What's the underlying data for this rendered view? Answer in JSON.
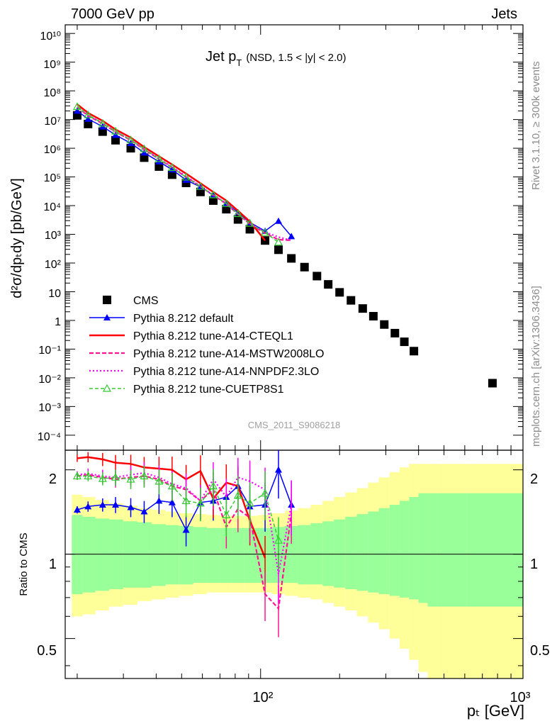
{
  "header": {
    "left": "7000 GeV pp",
    "right": "Jets",
    "title": "Jet p",
    "title_sub": "T",
    "title_cond": "(NSD, 1.5 < |y| < 2.0)"
  },
  "side_labels": {
    "top": "Rivet 3.1.10, ≥ 300k events",
    "bottom": "mcplots.cern.ch [arXiv:1306.3436]"
  },
  "watermark": "CMS_2011_S9086218",
  "axes": {
    "ylabel_main": "d²σ/dpₜdy [pb/GeV]",
    "ylabel_ratio": "Ratio to CMS",
    "xlabel": "pₜ [GeV]",
    "x_ticks": [
      "10²",
      "10³"
    ],
    "y_ticks_main": [
      "10⁴",
      "10³",
      "10²",
      "10",
      "1",
      "10⁻¹",
      "10⁻²",
      "10⁻³",
      "10⁻⁴"
    ],
    "y_ticks_main_sup": [
      "10¹⁰",
      "10⁹",
      "10⁸",
      "10⁷",
      "10⁶",
      "10⁵"
    ],
    "y_ticks_ratio": [
      "2",
      "1",
      "0.5"
    ]
  },
  "colors": {
    "cms": "#000000",
    "default": "#0000ff",
    "cteql1": "#ff0000",
    "mstw": "#ff1493",
    "nnpdf": "#ff00ff",
    "cuetp8s1": "#33cc33",
    "band_inner": "#99ff99",
    "band_outer": "#ffff99"
  },
  "chart_data": {
    "type": "scatter",
    "x_scale": "log",
    "y_scale": "log",
    "xlim": [
      18,
      1000
    ],
    "ylim": [
      3e-05,
      20000000000
    ],
    "ratio_ylim": [
      0.36,
      2.35
    ],
    "legend_position": "middle-left",
    "x": [
      20,
      22,
      25,
      28,
      32,
      36,
      41,
      46,
      52,
      59,
      66,
      74,
      82,
      91,
      104,
      117,
      131,
      147,
      164,
      181,
      200,
      221,
      245,
      269,
      296,
      325,
      353,
      384,
      416,
      451,
      487,
      765
    ],
    "series": [
      {
        "name": "CMS",
        "marker": "square",
        "values": [
          14000000,
          7000000,
          3800000,
          1900000,
          1000000,
          470000,
          230000,
          120000,
          62000,
          30000,
          15000,
          7500,
          3300,
          1500,
          610,
          290,
          145,
          72,
          35,
          18,
          9.5,
          5,
          2.6,
          1.4,
          0.72,
          0.36,
          0.18,
          0.085,
          null,
          null,
          null,
          0.0065
        ],
        "ratio_band_inner": [
          [
            0.72,
            1.38
          ],
          [
            0.73,
            1.36
          ],
          [
            0.74,
            1.34
          ],
          [
            0.75,
            1.33
          ],
          [
            0.76,
            1.31
          ],
          [
            0.76,
            1.3
          ],
          [
            0.77,
            1.28
          ],
          [
            0.78,
            1.27
          ],
          [
            0.78,
            1.26
          ],
          [
            0.79,
            1.25
          ],
          [
            0.79,
            1.24
          ],
          [
            0.79,
            1.24
          ],
          [
            0.79,
            1.24
          ],
          [
            0.79,
            1.24
          ],
          [
            0.79,
            1.24
          ],
          [
            0.79,
            1.25
          ],
          [
            0.79,
            1.26
          ],
          [
            0.78,
            1.27
          ],
          [
            0.78,
            1.29
          ],
          [
            0.77,
            1.31
          ],
          [
            0.76,
            1.33
          ],
          [
            0.75,
            1.36
          ],
          [
            0.74,
            1.39
          ],
          [
            0.73,
            1.42
          ],
          [
            0.72,
            1.46
          ],
          [
            0.71,
            1.5
          ],
          [
            0.7,
            1.55
          ],
          [
            0.69,
            1.6
          ],
          [
            0.67,
            1.65
          ],
          [
            0.65,
            1.65
          ],
          [
            0.65,
            1.65
          ],
          [
            0.65,
            1.65
          ]
        ],
        "ratio_band_outer": [
          [
            0.6,
            1.63
          ],
          [
            0.61,
            1.6
          ],
          [
            0.63,
            1.56
          ],
          [
            0.65,
            1.52
          ],
          [
            0.66,
            1.49
          ],
          [
            0.68,
            1.46
          ],
          [
            0.69,
            1.44
          ],
          [
            0.7,
            1.42
          ],
          [
            0.71,
            1.4
          ],
          [
            0.72,
            1.39
          ],
          [
            0.73,
            1.38
          ],
          [
            0.73,
            1.37
          ],
          [
            0.73,
            1.37
          ],
          [
            0.73,
            1.37
          ],
          [
            0.73,
            1.38
          ],
          [
            0.72,
            1.4
          ],
          [
            0.71,
            1.43
          ],
          [
            0.7,
            1.46
          ],
          [
            0.69,
            1.5
          ],
          [
            0.67,
            1.55
          ],
          [
            0.65,
            1.6
          ],
          [
            0.63,
            1.66
          ],
          [
            0.6,
            1.72
          ],
          [
            0.57,
            1.8
          ],
          [
            0.54,
            1.88
          ],
          [
            0.5,
            1.96
          ],
          [
            0.46,
            2.04
          ],
          [
            0.42,
            2.1
          ],
          [
            0.38,
            2.1
          ],
          [
            0.34,
            2.1
          ],
          [
            0.34,
            2.1
          ],
          [
            0.34,
            2.1
          ]
        ]
      },
      {
        "name": "Pythia 8.212 default",
        "marker": "filled-triangle",
        "values": [
          20000000,
          10500000,
          5700000,
          2900000,
          1500000,
          700000,
          340000,
          180000,
          78000,
          45000,
          23000,
          12000,
          5800,
          2600,
          1300,
          2900,
          850
        ],
        "ratio": [
          1.44,
          1.48,
          1.5,
          1.5,
          1.47,
          1.42,
          1.55,
          1.53,
          1.22,
          1.53,
          1.55,
          1.6,
          1.75,
          1.48,
          1.5,
          2.0,
          1.5
        ]
      },
      {
        "name": "Pythia 8.212 tune-A14-CTEQL1",
        "marker": "line",
        "values": [
          34000000,
          17000000,
          9000000,
          4500000,
          2350000,
          1100000,
          520000,
          270000,
          130000,
          60000,
          30000,
          15000,
          6600,
          2800,
          610
        ],
        "ratio": [
          2.2,
          2.22,
          2.18,
          2.12,
          2.1,
          2.04,
          2.02,
          2.0,
          1.85,
          1.98,
          1.58,
          1.8,
          1.75,
          1.32,
          0.97
        ]
      },
      {
        "name": "Pythia 8.212 tune-A14-MSTW2008LO",
        "marker": "dashed",
        "values": [
          27000000,
          13500000,
          7200000,
          3700000,
          1900000,
          900000,
          420000,
          210000,
          100000,
          46000,
          23000,
          11500,
          5000,
          2300,
          1100,
          650,
          620
        ],
        "ratio": [
          1.9,
          1.92,
          1.88,
          1.85,
          1.88,
          1.9,
          1.85,
          1.75,
          1.7,
          1.55,
          1.7,
          1.25,
          1.45,
          1.35,
          0.72,
          0.64,
          1.4
        ]
      },
      {
        "name": "Pythia 8.212 tune-A14-NNPDF2.3LO",
        "marker": "dotted",
        "values": [
          28000000,
          14000000,
          7500000,
          3800000,
          1950000,
          920000,
          440000,
          220000,
          105000,
          47000,
          24000,
          12000,
          5200,
          2400,
          1200,
          800,
          620
        ],
        "ratio": [
          1.92,
          1.94,
          1.9,
          1.88,
          1.92,
          1.95,
          1.88,
          1.78,
          1.72,
          1.55,
          1.85,
          1.6,
          1.88,
          1.82,
          1.7,
          0.85,
          1.5
        ]
      },
      {
        "name": "Pythia 8.212 tune-CUETP8S1",
        "marker": "open-triangle",
        "values": [
          28000000,
          14500000,
          7400000,
          3900000,
          1950000,
          950000,
          430000,
          210000,
          98000,
          46000,
          23500,
          11800,
          5200,
          2400,
          1150,
          530
        ],
        "ratio": [
          1.9,
          1.9,
          1.86,
          1.88,
          1.85,
          1.9,
          1.82,
          1.75,
          1.55,
          1.52,
          1.75,
          1.38,
          1.62,
          1.52,
          1.65,
          1.12
        ]
      }
    ]
  }
}
